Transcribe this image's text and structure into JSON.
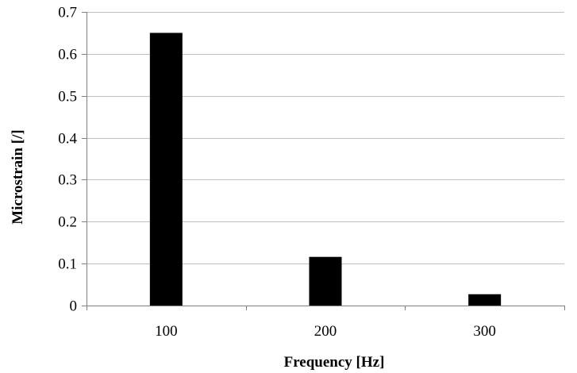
{
  "chart_data": {
    "type": "bar",
    "categories": [
      "100",
      "200",
      "300"
    ],
    "values": [
      0.65,
      0.116,
      0.027
    ],
    "title": "",
    "xlabel": "Frequency [Hz]",
    "ylabel": "Microstrain [/]",
    "ylim": [
      0,
      0.7
    ],
    "yticks": [
      "0",
      "0.1",
      "0.2",
      "0.3",
      "0.4",
      "0.5",
      "0.6",
      "0.7"
    ],
    "grid": true,
    "legend": "none",
    "colors": {
      "bar": "#000000",
      "grid": "#bfbfbf",
      "axis": "#808080"
    }
  }
}
